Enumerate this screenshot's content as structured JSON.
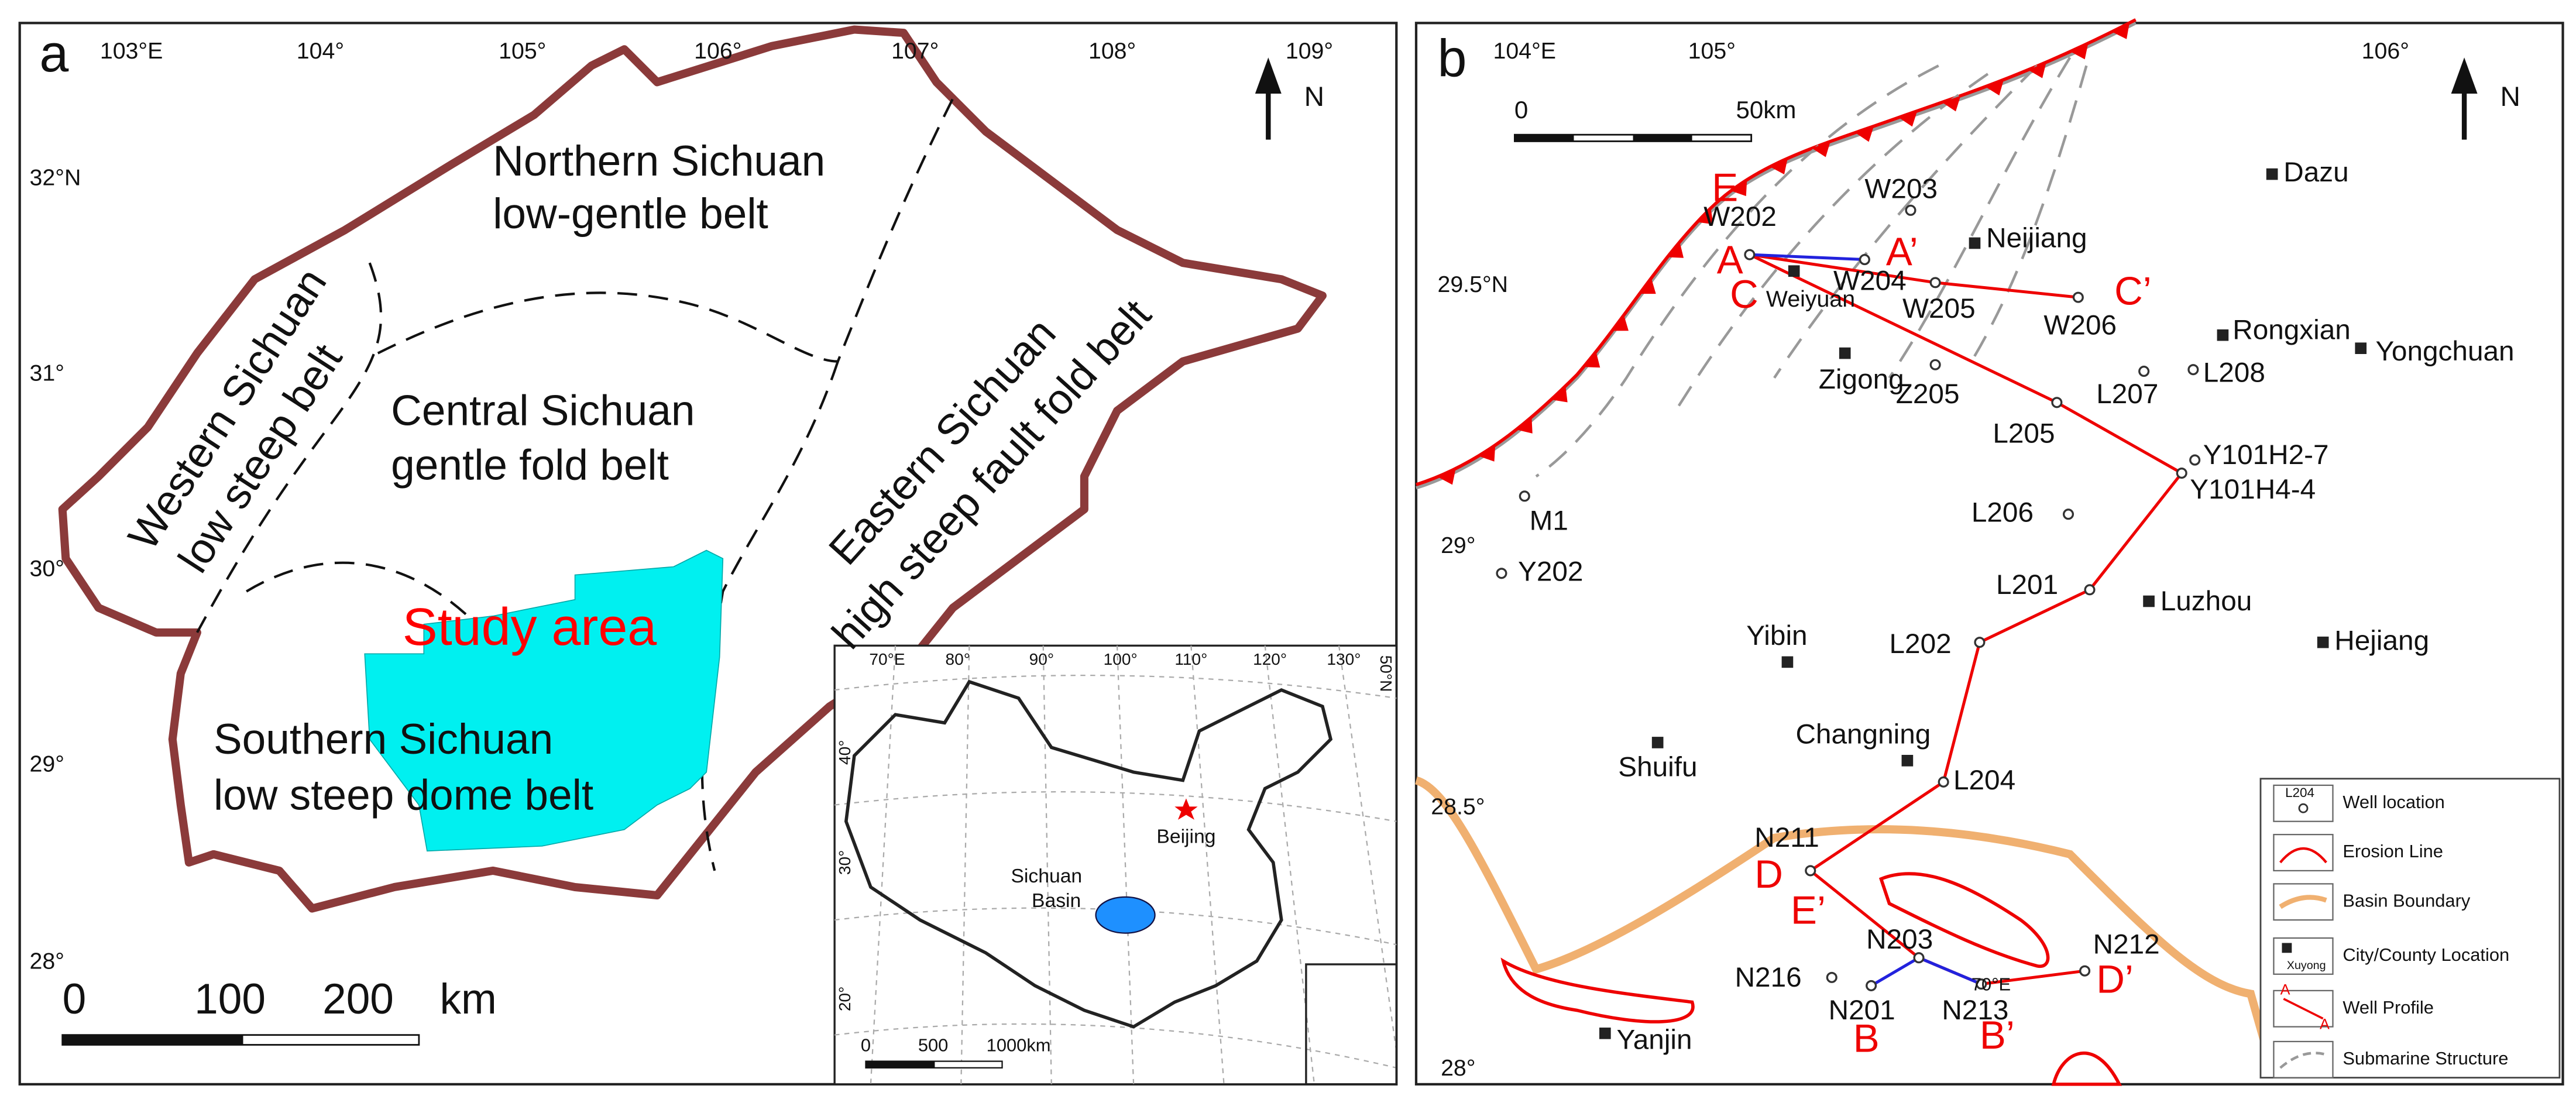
{
  "panel_a": {
    "label": "a",
    "north": "N",
    "lon_labels": [
      "103°E",
      "104°",
      "105°",
      "106°",
      "107°",
      "108°",
      "109°"
    ],
    "lat_labels": [
      "32°N",
      "31°",
      "30°",
      "29°",
      "28°"
    ],
    "zones": [
      [
        "Northern Sichuan",
        "low-gentle belt"
      ],
      [
        "Central Sichuan",
        "gentle fold belt"
      ],
      [
        "Western Sichuan",
        "low steep belt"
      ],
      [
        "Eastern Sichuan",
        "high steep fault fold belt"
      ],
      [
        "Southern Sichuan",
        "low steep dome belt"
      ]
    ],
    "study_area": "Study area",
    "scale": [
      "0",
      "100",
      "200"
    ],
    "scale_unit": "km",
    "inset": {
      "lon_labels": [
        "70°E",
        "80°",
        "90°",
        "100°",
        "110°",
        "120°",
        "130°"
      ],
      "lat_labels": [
        "50°N",
        "40°",
        "30°",
        "20°"
      ],
      "beijing": "Beijing",
      "sichuan_basin": [
        "Sichuan",
        "Basin"
      ],
      "scale": [
        "0",
        "500",
        "1000km"
      ]
    }
  },
  "panel_b": {
    "label": "b",
    "north": "N",
    "lon_labels": [
      "104°E",
      "105°",
      "106°"
    ],
    "lat_labels": [
      "29.5°N",
      "29°",
      "28.5°",
      "28°"
    ],
    "scale": [
      "0",
      "50km"
    ],
    "stray_label": "70°E",
    "wells": [
      "W202",
      "W203",
      "W204",
      "W205",
      "W206",
      "Z205",
      "L207",
      "L208",
      "Y101H2-7",
      "Y101H4-4",
      "L205",
      "L206",
      "L201",
      "L202",
      "L204",
      "N211",
      "N203",
      "N216",
      "N201",
      "N213",
      "N212",
      "M1",
      "Y202"
    ],
    "cities": [
      "Dazu",
      "Neijiang",
      "Weiyuan",
      "Zigong",
      "Rongxian",
      "Yongchuan",
      "Luzhou",
      "Yibin",
      "Hejiang",
      "Changning",
      "Shuifu",
      "Yanjin"
    ],
    "profile_letters": [
      "A",
      "A’",
      "C",
      "C’",
      "E",
      "E’",
      "D",
      "D’",
      "B",
      "B’"
    ],
    "legend": {
      "items": [
        "Well location",
        "Erosion Line",
        "Basin Boundary",
        "City/County Location",
        "Well Profile",
        "Submarine Structure"
      ],
      "well_icon": "L204",
      "city_icon": "Xuyong",
      "profile_icon": [
        "A",
        "A"
      ]
    }
  }
}
